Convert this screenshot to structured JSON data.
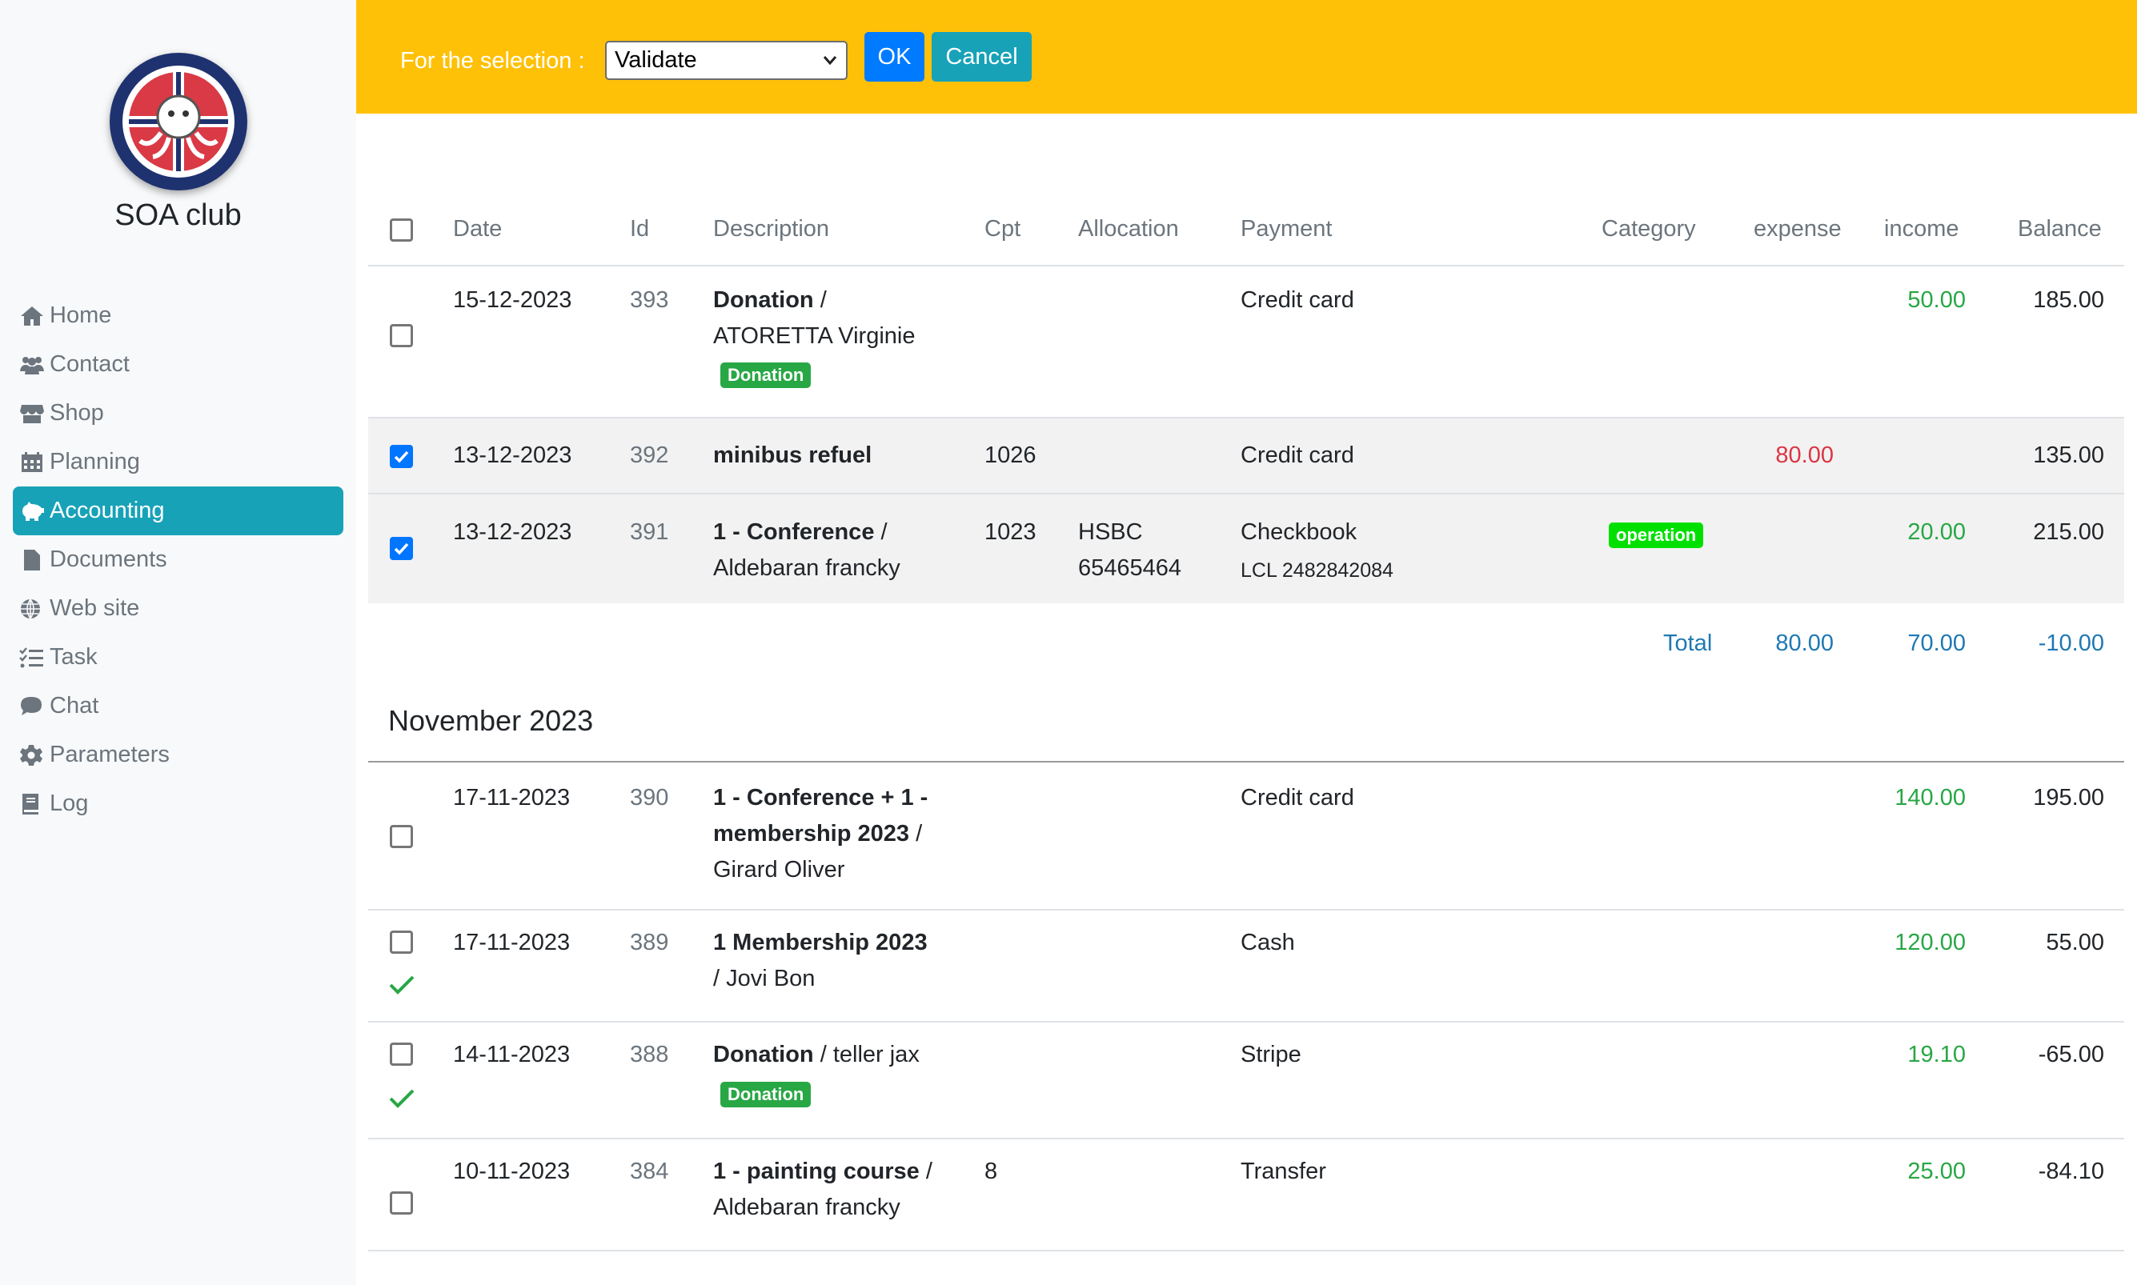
{
  "sidebar": {
    "club_name": "SOA club",
    "logo_icon": "dive-club-logo",
    "items": [
      {
        "label": "Home",
        "icon": "home-icon"
      },
      {
        "label": "Contact",
        "icon": "users-icon"
      },
      {
        "label": "Shop",
        "icon": "store-icon"
      },
      {
        "label": "Planning",
        "icon": "calendar-icon"
      },
      {
        "label": "Accounting",
        "icon": "piggy-bank-icon",
        "active": true
      },
      {
        "label": "Documents",
        "icon": "file-icon"
      },
      {
        "label": "Web site",
        "icon": "globe-icon"
      },
      {
        "label": "Task",
        "icon": "tasks-icon"
      },
      {
        "label": "Chat",
        "icon": "comment-icon"
      },
      {
        "label": "Parameters",
        "icon": "gear-icon"
      },
      {
        "label": "Log",
        "icon": "book-icon"
      }
    ]
  },
  "topbar": {
    "selection_label": "For the selection :",
    "selection_value": "Validate",
    "ok_label": "OK",
    "cancel_label": "Cancel",
    "background": "#ffc107"
  },
  "table": {
    "headers": {
      "date": "Date",
      "id": "Id",
      "description": "Description",
      "cpt": "Cpt",
      "allocation": "Allocation",
      "payment": "Payment",
      "category": "Category",
      "expense": "expense",
      "income": "income",
      "balance": "Balance"
    },
    "rows": [
      {
        "checked": false,
        "date": "15-12-2023",
        "id": "393",
        "desc_bold": "Donation",
        "desc_rest": " /",
        "desc_line2": "ATORETTA Virginie",
        "badge": "Donation",
        "cpt": "",
        "allocation": "",
        "payment": "Credit card",
        "category": "",
        "expense": "",
        "income": "50.00",
        "balance": "185.00"
      },
      {
        "checked": true,
        "date": "13-12-2023",
        "id": "392",
        "desc_bold": "minibus refuel",
        "desc_rest": "",
        "cpt": "1026",
        "allocation": "",
        "payment": "Credit card",
        "category": "",
        "expense": "80.00",
        "income": "",
        "balance": "135.00"
      },
      {
        "checked": true,
        "date": "13-12-2023",
        "id": "391",
        "desc_bold": "1 - Conference",
        "desc_rest": " /",
        "desc_line2": "Aldebaran francky",
        "cpt": "1023",
        "allocation_1": "HSBC",
        "allocation_2": "65465464",
        "payment": "Checkbook",
        "payment_sub": "LCL 2482842084",
        "category": "operation",
        "expense": "",
        "income": "20.00",
        "balance": "215.00"
      }
    ],
    "total": {
      "label": "Total",
      "expense": "80.00",
      "income": "70.00",
      "balance": "-10.00"
    },
    "month": "November 2023",
    "rows2": [
      {
        "checked": false,
        "validated": false,
        "date": "17-11-2023",
        "id": "390",
        "desc_bold_1": "1 - Conference + 1 -",
        "desc_bold_2": "membership 2023",
        "desc_rest_2": " /",
        "desc_line3": "Girard Oliver",
        "payment": "Credit card",
        "income": "140.00",
        "balance": "195.00"
      },
      {
        "checked": false,
        "validated": true,
        "date": "17-11-2023",
        "id": "389",
        "desc_bold_1": "1 Membership 2023",
        "desc_line2": "/ Jovi Bon",
        "payment": "Cash",
        "income": "120.00",
        "balance": "55.00"
      },
      {
        "checked": false,
        "validated": true,
        "date": "14-11-2023",
        "id": "388",
        "desc_bold_1": "Donation",
        "desc_rest_1": " / teller jax",
        "badge": "Donation",
        "payment": "Stripe",
        "income": "19.10",
        "balance": "-65.00"
      },
      {
        "checked": false,
        "validated": false,
        "date": "10-11-2023",
        "id": "384",
        "desc_bold_1": "1 - painting course",
        "desc_rest_1": " /",
        "desc_line2": "Aldebaran francky",
        "cpt": "8",
        "payment": "Transfer",
        "income": "25.00",
        "balance": "-84.10"
      }
    ]
  },
  "colors": {
    "accent": "#17a2b8",
    "ok": "#007bff",
    "income": "#28a745",
    "expense": "#dc3545",
    "total": "#1f78b4"
  }
}
